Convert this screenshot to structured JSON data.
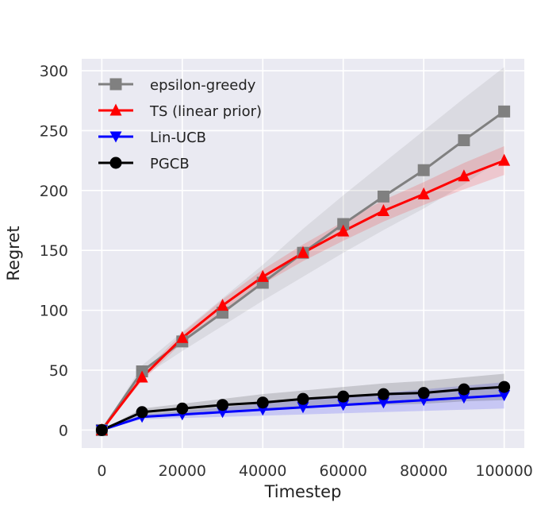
{
  "chart_data": {
    "type": "line",
    "title": "",
    "xlabel": "Timestep",
    "ylabel": "Regret",
    "xlim": [
      -5000,
      105000
    ],
    "ylim": [
      -15,
      310
    ],
    "x_ticks": [
      0,
      20000,
      40000,
      60000,
      80000,
      100000
    ],
    "x_tick_labels": [
      "0",
      "20000",
      "40000",
      "60000",
      "80000",
      "100000"
    ],
    "y_ticks": [
      0,
      50,
      100,
      150,
      200,
      250,
      300
    ],
    "y_tick_labels": [
      "0",
      "50",
      "100",
      "150",
      "200",
      "250",
      "300"
    ],
    "grid": true,
    "background": "#eaeaf2",
    "legend_position": "top-left",
    "x": [
      0,
      10000,
      20000,
      30000,
      40000,
      50000,
      60000,
      70000,
      80000,
      90000,
      100000
    ],
    "series": [
      {
        "name": "epsilon-greedy",
        "color": "#808080",
        "marker": "square",
        "values": [
          0,
          49,
          74,
          98,
          123,
          148,
          172,
          195,
          217,
          242,
          266
        ],
        "lower": [
          0,
          44,
          66,
          87,
          108,
          128,
          148,
          167,
          185,
          205,
          228
        ],
        "upper": [
          0,
          54,
          82,
          110,
          138,
          168,
          196,
          223,
          250,
          277,
          303
        ]
      },
      {
        "name": "TS (linear prior)",
        "color": "#ff0000",
        "marker": "triangle-up",
        "values": [
          0,
          44,
          77,
          104,
          128,
          148,
          166,
          183,
          197,
          212,
          225
        ],
        "lower": [
          0,
          41,
          73,
          99,
          122,
          141,
          158,
          174,
          188,
          201,
          213
        ],
        "upper": [
          0,
          47,
          81,
          109,
          134,
          155,
          174,
          192,
          207,
          223,
          237
        ]
      },
      {
        "name": "Lin-UCB",
        "color": "#0000ff",
        "marker": "triangle-down",
        "values": [
          0,
          11,
          13,
          15,
          17,
          19,
          21,
          23,
          25,
          27,
          29
        ],
        "lower": [
          0,
          9,
          10,
          11,
          12,
          13,
          14,
          15,
          16,
          17,
          18
        ],
        "upper": [
          0,
          13,
          16,
          19,
          22,
          25,
          28,
          31,
          34,
          37,
          40
        ]
      },
      {
        "name": "PGCB",
        "color": "#000000",
        "marker": "circle",
        "values": [
          0,
          15,
          18,
          21,
          23,
          26,
          28,
          30,
          31,
          34,
          36
        ],
        "lower": [
          0,
          12,
          14,
          16,
          17,
          19,
          20,
          21,
          22,
          24,
          25
        ],
        "upper": [
          0,
          18,
          22,
          26,
          30,
          33,
          36,
          39,
          41,
          44,
          47
        ]
      }
    ]
  }
}
